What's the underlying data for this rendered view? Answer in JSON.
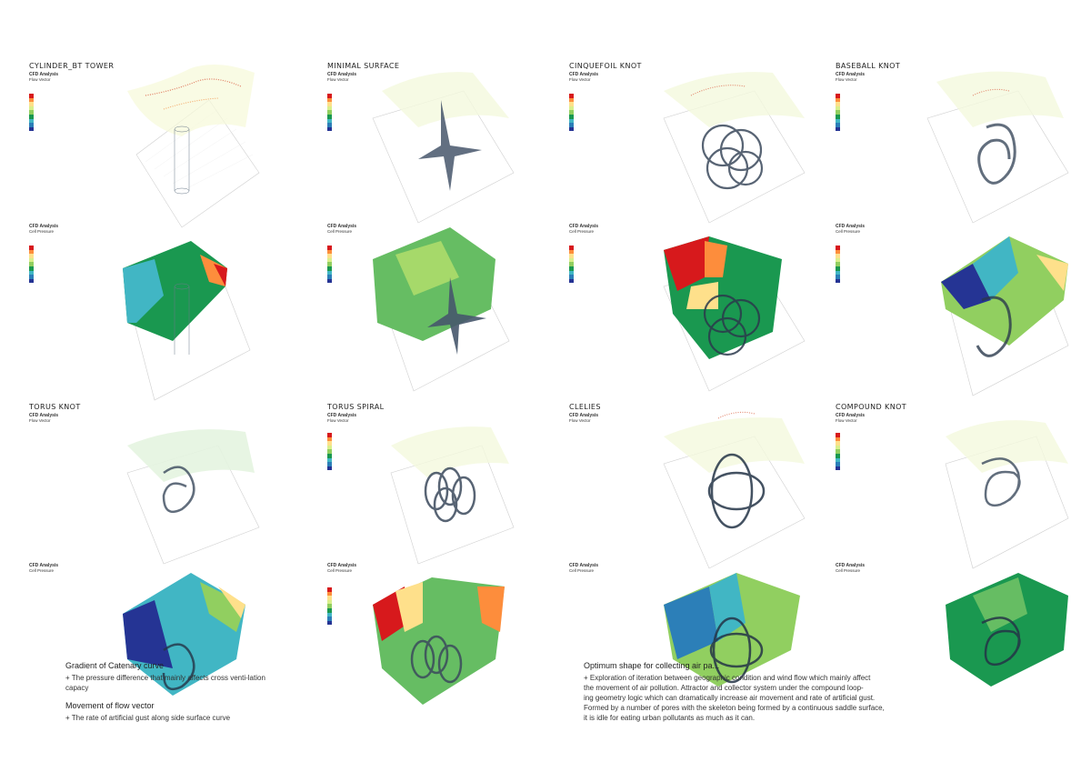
{
  "panels": [
    {
      "title": "CYLINDER_BT TOWER"
    },
    {
      "title": "MINIMAL SURFACE"
    },
    {
      "title": "CINQUEFOIL KNOT"
    },
    {
      "title": "BASEBALL KNOT"
    },
    {
      "title": "TORUS KNOT"
    },
    {
      "title": "TORUS SPIRAL"
    },
    {
      "title": "CLELIES"
    },
    {
      "title": "COMPOUND KNOT"
    }
  ],
  "analysis": {
    "heading": "CFD Analysis",
    "flow_vector": "Flow Vector",
    "cell_pressure": "Cell Pressure"
  },
  "legend_colors": [
    "#d7191c",
    "#fd8d3c",
    "#fee08b",
    "#d9ef8b",
    "#91cf60",
    "#1a9850",
    "#41b6c4",
    "#2c7fb8",
    "#253494"
  ],
  "notes_left": {
    "heading1": "Gradient of Catenary curve",
    "body1": "+ The pressure difference that mainly affects cross venti-lation capacy",
    "heading2": "Movement of flow vector",
    "body2": "+ The rate of artificial gust along side surface curve"
  },
  "notes_right": {
    "heading": "Optimum shape for collecting air pa...",
    "line1": "+ Exploration of iteration between geographic condition and wind flow which mainly affect",
    "line2": "the movement of air pollution. Attractor and collector system under the compound loop-",
    "line3": "ing geometry logic which can dramatically increase air movement and rate of artificial gust.",
    "line4": "Formed by a number of pores with the skeleton being formed by a continuous saddle surface,",
    "line5": "it is idle for eating urban pollutants as much as it can."
  }
}
